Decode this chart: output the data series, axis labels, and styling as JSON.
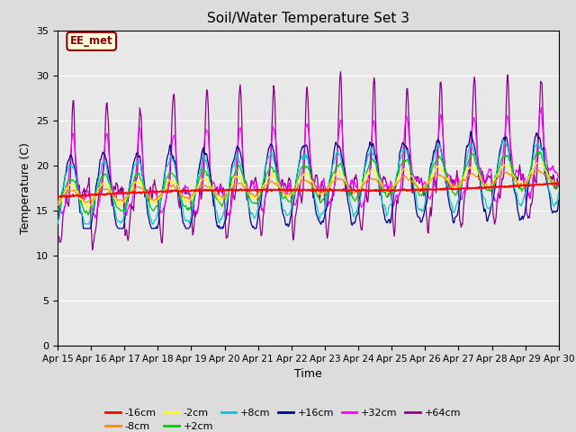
{
  "title": "Soil/Water Temperature Set 3",
  "xlabel": "Time",
  "ylabel": "Temperature (C)",
  "ylim": [
    0,
    35
  ],
  "yticks": [
    0,
    5,
    10,
    15,
    20,
    25,
    30,
    35
  ],
  "xtick_labels": [
    "Apr 15",
    "Apr 16",
    "Apr 17",
    "Apr 18",
    "Apr 19",
    "Apr 20",
    "Apr 21",
    "Apr 22",
    "Apr 23",
    "Apr 24",
    "Apr 25",
    "Apr 26",
    "Apr 27",
    "Apr 28",
    "Apr 29",
    "Apr 30"
  ],
  "annotation_text": "EE_met",
  "annotation_color": "#8B0000",
  "annotation_bg": "#FFFFE0",
  "series_colors": {
    "-16cm": "#FF0000",
    "-8cm": "#FF8C00",
    "-2cm": "#FFFF00",
    "+2cm": "#00CC00",
    "+8cm": "#00CCCC",
    "+16cm": "#00008B",
    "+32cm": "#FF00FF",
    "+64cm": "#8B008B"
  },
  "background_inner": "#E8E8E8",
  "background_outer": "#DCDCDC",
  "grid_color": "#FFFFFF"
}
